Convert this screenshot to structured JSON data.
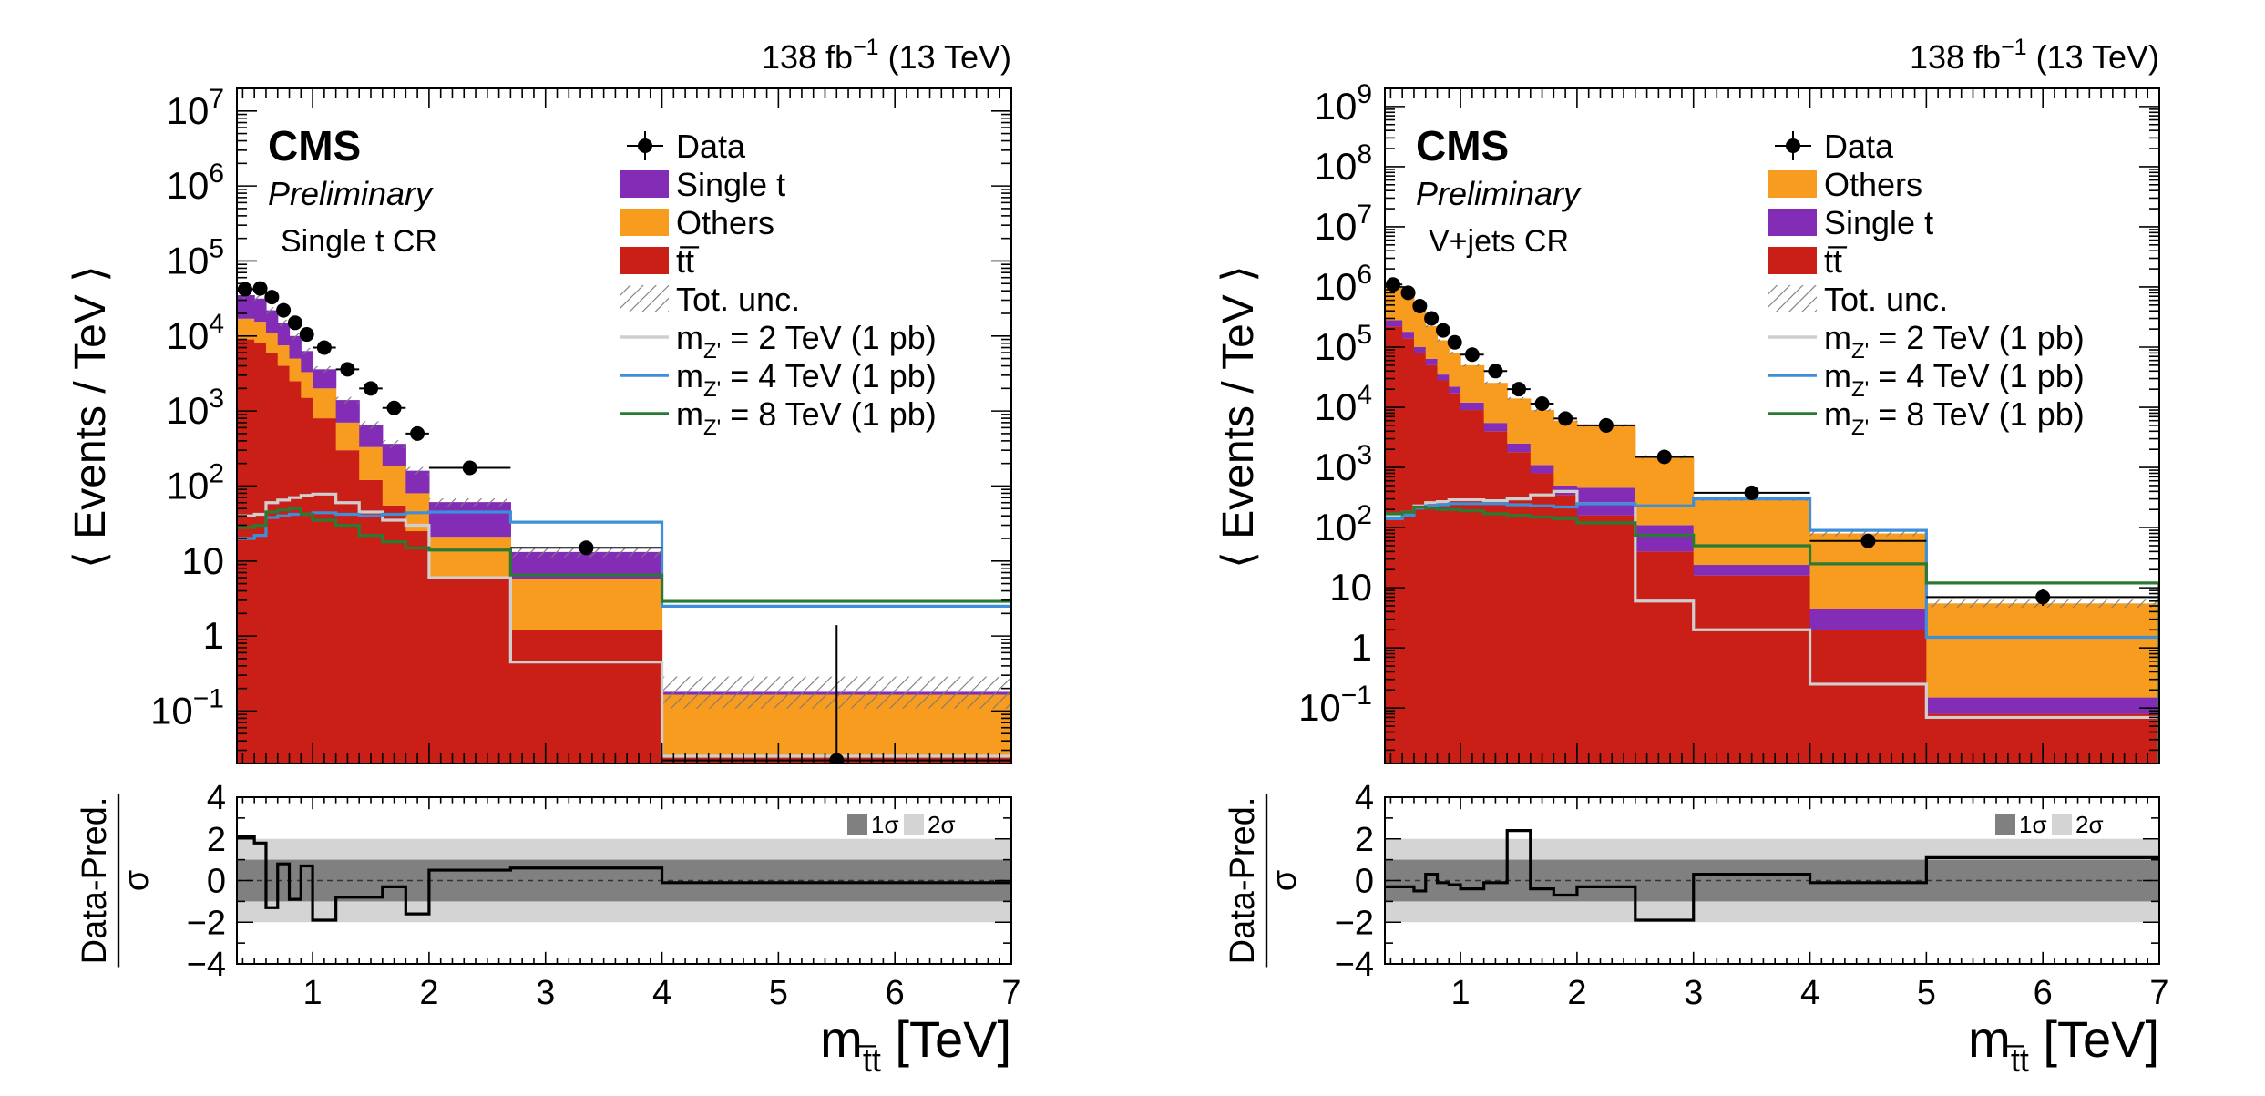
{
  "chart_data": [
    {
      "type": "stacked-step-histogram",
      "lumi_label": "138 fb",
      "lumi_exp": "−1",
      "energy_label": "(13 TeV)",
      "experiment": "CMS",
      "status": "Preliminary",
      "region": "Single t CR",
      "ylabel": "⟨ Events / TeV ⟩",
      "xlabel_main": "m",
      "xlabel_sub": "t̅t",
      "xlabel_unit": "[TeV]",
      "y_log": true,
      "ylim": [
        0.02,
        20000000
      ],
      "xlim": [
        0.35,
        7
      ],
      "xticks": [
        1,
        2,
        3,
        4,
        5,
        6,
        7
      ],
      "yticks": [
        {
          "v": 0.1,
          "t": "10",
          "e": "−1"
        },
        {
          "v": 1,
          "t": "1",
          "e": ""
        },
        {
          "v": 10,
          "t": "10",
          "e": ""
        },
        {
          "v": 100,
          "t": "10",
          "e": "2"
        },
        {
          "v": 1000,
          "t": "10",
          "e": "3"
        },
        {
          "v": 10000,
          "t": "10",
          "e": "4"
        },
        {
          "v": 100000,
          "t": "10",
          "e": "5"
        },
        {
          "v": 1000000,
          "t": "10",
          "e": "6"
        },
        {
          "v": 10000000,
          "t": "10",
          "e": "7"
        }
      ],
      "bin_edges": [
        0.35,
        0.5,
        0.6,
        0.7,
        0.8,
        0.9,
        1.0,
        1.2,
        1.4,
        1.6,
        1.8,
        2.0,
        2.7,
        4.0,
        7.0
      ],
      "stack": [
        {
          "name": "tt̅",
          "color": "#c91f16",
          "values": [
            9000,
            8000,
            6000,
            4000,
            2500,
            1500,
            800,
            300,
            120,
            55,
            25,
            6,
            1.2,
            0.025
          ]
        },
        {
          "name": "Others",
          "color": "#f89c20",
          "values": [
            8000,
            7500,
            5000,
            3500,
            2500,
            1800,
            1200,
            400,
            210,
            130,
            55,
            15,
            4.5,
            0.14
          ]
        },
        {
          "name": "Single t",
          "color": "#832db6",
          "values": [
            18000,
            16000,
            11000,
            7500,
            5000,
            3000,
            1600,
            700,
            320,
            180,
            80,
            40,
            7.5,
            0.015
          ]
        }
      ],
      "unc_bands": [
        {
          "lo": 0.9,
          "hi": 1.1
        },
        {
          "lo": 0.9,
          "hi": 1.1
        },
        {
          "lo": 0.9,
          "hi": 1.1
        },
        {
          "lo": 0.9,
          "hi": 1.1
        },
        {
          "lo": 0.9,
          "hi": 1.1
        },
        {
          "lo": 0.9,
          "hi": 1.1
        },
        {
          "lo": 0.9,
          "hi": 1.1
        },
        {
          "lo": 0.9,
          "hi": 1.1
        },
        {
          "lo": 0.88,
          "hi": 1.12
        },
        {
          "lo": 0.88,
          "hi": 1.12
        },
        {
          "lo": 0.88,
          "hi": 1.12
        },
        {
          "lo": 0.88,
          "hi": 1.12
        },
        {
          "lo": 0.85,
          "hi": 1.15
        },
        {
          "lo": 0.6,
          "hi": 1.6
        }
      ],
      "data": [
        {
          "x": 0.42,
          "y": 42000,
          "ylo": 40000,
          "yhi": 44000
        },
        {
          "x": 0.55,
          "y": 43000,
          "ylo": 41000,
          "yhi": 45000
        },
        {
          "x": 0.65,
          "y": 33000,
          "ylo": 31000,
          "yhi": 35000
        },
        {
          "x": 0.75,
          "y": 22000,
          "ylo": 21000,
          "yhi": 23000
        },
        {
          "x": 0.85,
          "y": 15000,
          "ylo": 14000,
          "yhi": 16000
        },
        {
          "x": 0.95,
          "y": 10500,
          "ylo": 10000,
          "yhi": 11000
        },
        {
          "x": 1.1,
          "y": 7000,
          "ylo": 6700,
          "yhi": 7300
        },
        {
          "x": 1.3,
          "y": 3600,
          "ylo": 3400,
          "yhi": 3800
        },
        {
          "x": 1.5,
          "y": 2000,
          "ylo": 1900,
          "yhi": 2100
        },
        {
          "x": 1.7,
          "y": 1100,
          "ylo": 1030,
          "yhi": 1170
        },
        {
          "x": 1.9,
          "y": 500,
          "ylo": 460,
          "yhi": 540
        },
        {
          "x": 2.35,
          "y": 175,
          "ylo": 165,
          "yhi": 185
        },
        {
          "x": 3.35,
          "y": 15,
          "ylo": 12,
          "yhi": 18
        },
        {
          "x": 5.5,
          "y": 0.022,
          "ylo": 0.015,
          "yhi": 1.4
        }
      ],
      "signals": [
        {
          "name": "2 TeV",
          "color": "#cfcfcf",
          "values": [
            40,
            42,
            60,
            65,
            70,
            75,
            78,
            60,
            45,
            35,
            30,
            6,
            0.45,
            0.025
          ]
        },
        {
          "name": "4 TeV",
          "color": "#3e8fd8",
          "values": [
            20,
            22,
            38,
            40,
            42,
            42,
            44,
            42,
            40,
            42,
            44,
            45,
            33,
            2.5
          ]
        },
        {
          "name": "8 TeV",
          "color": "#2a7a34",
          "values": [
            28,
            30,
            45,
            48,
            50,
            42,
            35,
            30,
            22,
            18,
            15,
            14,
            6.5,
            2.9
          ]
        }
      ],
      "legend": [
        {
          "kind": "data",
          "label": "Data"
        },
        {
          "kind": "fill",
          "color": "#832db6",
          "label": "Single t"
        },
        {
          "kind": "fill",
          "color": "#f89c20",
          "label": "Others"
        },
        {
          "kind": "fill",
          "color": "#c91f16",
          "label": "tt̅"
        },
        {
          "kind": "hatch",
          "label": "Tot. unc."
        },
        {
          "kind": "line",
          "color": "#cfcfcf",
          "label": "m",
          "sub": "Z'",
          "rest": " = 2 TeV (1 pb)"
        },
        {
          "kind": "line",
          "color": "#3e8fd8",
          "label": "m",
          "sub": "Z'",
          "rest": " = 4 TeV (1 pb)"
        },
        {
          "kind": "line",
          "color": "#2a7a34",
          "label": "m",
          "sub": "Z'",
          "rest": " = 8 TeV (1 pb)"
        }
      ],
      "pull": {
        "ylabel_num": "Data-Pred.",
        "ylabel_den": "σ",
        "ylim": [
          -4,
          4
        ],
        "yticks": [
          {
            "v": -4,
            "t": "−4"
          },
          {
            "v": -2,
            "t": "−2"
          },
          {
            "v": 0,
            "t": "0"
          },
          {
            "v": 2,
            "t": "2"
          },
          {
            "v": 4,
            "t": "4"
          }
        ],
        "band1_label": "1σ",
        "band2_label": "2σ",
        "values": [
          2.1,
          1.8,
          -1.3,
          0.8,
          -0.9,
          0.7,
          -1.9,
          -0.8,
          -0.8,
          -0.3,
          -1.6,
          0.5,
          0.6,
          -0.1
        ]
      }
    },
    {
      "type": "stacked-step-histogram",
      "lumi_label": "138 fb",
      "lumi_exp": "−1",
      "energy_label": "(13 TeV)",
      "experiment": "CMS",
      "status": "Preliminary",
      "region": "V+jets CR",
      "ylabel": "⟨ Events / TeV ⟩",
      "xlabel_main": "m",
      "xlabel_sub": "t̅t",
      "xlabel_unit": "[TeV]",
      "y_log": true,
      "ylim": [
        0.012,
        2000000000
      ],
      "xlim": [
        0.35,
        7
      ],
      "xticks": [
        1,
        2,
        3,
        4,
        5,
        6,
        7
      ],
      "yticks": [
        {
          "v": 0.1,
          "t": "10",
          "e": "−1"
        },
        {
          "v": 1,
          "t": "1",
          "e": ""
        },
        {
          "v": 10,
          "t": "10",
          "e": ""
        },
        {
          "v": 100,
          "t": "10",
          "e": "2"
        },
        {
          "v": 1000,
          "t": "10",
          "e": "3"
        },
        {
          "v": 10000,
          "t": "10",
          "e": "4"
        },
        {
          "v": 100000,
          "t": "10",
          "e": "5"
        },
        {
          "v": 1000000,
          "t": "10",
          "e": "6"
        },
        {
          "v": 10000000,
          "t": "10",
          "e": "7"
        },
        {
          "v": 100000000,
          "t": "10",
          "e": "8"
        },
        {
          "v": 1000000000,
          "t": "10",
          "e": "9"
        }
      ],
      "bin_edges": [
        0.35,
        0.5,
        0.6,
        0.7,
        0.8,
        0.9,
        1.0,
        1.2,
        1.4,
        1.6,
        1.8,
        2.0,
        2.5,
        3.0,
        4.0,
        5.0,
        7.0
      ],
      "stack": [
        {
          "name": "tt̅",
          "color": "#c91f16",
          "values": [
            220000,
            140000,
            80000,
            50000,
            28000,
            17000,
            9000,
            4000,
            1800,
            800,
            350,
            160,
            40,
            16,
            2,
            0.08
          ]
        },
        {
          "name": "Single t",
          "color": "#832db6",
          "values": [
            60000,
            40000,
            20000,
            14000,
            7000,
            5000,
            3000,
            1500,
            700,
            300,
            150,
            300,
            70,
            8,
            2.5,
            0.07
          ]
        },
        {
          "name": "Others",
          "color": "#f89c20",
          "values": [
            720000,
            520000,
            300000,
            160000,
            95000,
            58000,
            38000,
            20000,
            11500,
            7900,
            5500,
            4500,
            1390,
            276,
            75.5,
            5.35
          ]
        }
      ],
      "unc_bands": [
        {
          "lo": 0.95,
          "hi": 1.05
        },
        {
          "lo": 0.95,
          "hi": 1.05
        },
        {
          "lo": 0.95,
          "hi": 1.05
        },
        {
          "lo": 0.95,
          "hi": 1.05
        },
        {
          "lo": 0.95,
          "hi": 1.05
        },
        {
          "lo": 0.95,
          "hi": 1.05
        },
        {
          "lo": 0.95,
          "hi": 1.05
        },
        {
          "lo": 0.95,
          "hi": 1.05
        },
        {
          "lo": 0.95,
          "hi": 1.05
        },
        {
          "lo": 0.95,
          "hi": 1.05
        },
        {
          "lo": 0.95,
          "hi": 1.05
        },
        {
          "lo": 0.95,
          "hi": 1.05
        },
        {
          "lo": 0.93,
          "hi": 1.07
        },
        {
          "lo": 0.92,
          "hi": 1.08
        },
        {
          "lo": 0.9,
          "hi": 1.1
        },
        {
          "lo": 0.85,
          "hi": 1.15
        }
      ],
      "data": [
        {
          "x": 0.42,
          "y": 1100000,
          "ylo": 1080000,
          "yhi": 1120000
        },
        {
          "x": 0.55,
          "y": 800000,
          "ylo": 785000,
          "yhi": 815000
        },
        {
          "x": 0.65,
          "y": 480000,
          "ylo": 470000,
          "yhi": 490000
        },
        {
          "x": 0.75,
          "y": 300000,
          "ylo": 293000,
          "yhi": 307000
        },
        {
          "x": 0.85,
          "y": 190000,
          "ylo": 185000,
          "yhi": 195000
        },
        {
          "x": 0.95,
          "y": 120000,
          "ylo": 117000,
          "yhi": 123000
        },
        {
          "x": 1.1,
          "y": 75000,
          "ylo": 73000,
          "yhi": 77000
        },
        {
          "x": 1.3,
          "y": 40000,
          "ylo": 39000,
          "yhi": 41000
        },
        {
          "x": 1.5,
          "y": 20000,
          "ylo": 19500,
          "yhi": 20500
        },
        {
          "x": 1.7,
          "y": 11500,
          "ylo": 11200,
          "yhi": 11800
        },
        {
          "x": 1.9,
          "y": 6500,
          "ylo": 6300,
          "yhi": 6700
        },
        {
          "x": 2.25,
          "y": 5000,
          "ylo": 4850,
          "yhi": 5150
        },
        {
          "x": 2.75,
          "y": 1500,
          "ylo": 1440,
          "yhi": 1560
        },
        {
          "x": 3.5,
          "y": 380,
          "ylo": 360,
          "yhi": 400
        },
        {
          "x": 4.5,
          "y": 60,
          "ylo": 54,
          "yhi": 66
        },
        {
          "x": 6.0,
          "y": 7,
          "ylo": 5,
          "yhi": 9.5
        }
      ],
      "signals": [
        {
          "name": "2 TeV",
          "color": "#cfcfcf",
          "values": [
            160,
            180,
            230,
            260,
            270,
            290,
            290,
            280,
            300,
            350,
            400,
            250,
            6,
            2,
            0.25,
            0.07
          ]
        },
        {
          "name": "4 TeV",
          "color": "#3e8fd8",
          "values": [
            140,
            160,
            210,
            230,
            240,
            250,
            250,
            250,
            240,
            230,
            220,
            250,
            230,
            300,
            90,
            1.5
          ]
        },
        {
          "name": "8 TeV",
          "color": "#2a7a34",
          "values": [
            170,
            180,
            220,
            210,
            200,
            200,
            190,
            170,
            160,
            150,
            140,
            120,
            75,
            50,
            25,
            12
          ]
        }
      ],
      "legend": [
        {
          "kind": "data",
          "label": "Data"
        },
        {
          "kind": "fill",
          "color": "#f89c20",
          "label": "Others"
        },
        {
          "kind": "fill",
          "color": "#832db6",
          "label": "Single t"
        },
        {
          "kind": "fill",
          "color": "#c91f16",
          "label": "tt̅"
        },
        {
          "kind": "hatch",
          "label": "Tot. unc."
        },
        {
          "kind": "line",
          "color": "#cfcfcf",
          "label": "m",
          "sub": "Z'",
          "rest": " = 2 TeV (1 pb)"
        },
        {
          "kind": "line",
          "color": "#3e8fd8",
          "label": "m",
          "sub": "Z'",
          "rest": " = 4 TeV (1 pb)"
        },
        {
          "kind": "line",
          "color": "#2a7a34",
          "label": "m",
          "sub": "Z'",
          "rest": " = 8 TeV (1 pb)"
        }
      ],
      "pull": {
        "ylabel_num": "Data-Pred.",
        "ylabel_den": "σ",
        "ylim": [
          -4,
          4
        ],
        "yticks": [
          {
            "v": -4,
            "t": "−4"
          },
          {
            "v": -2,
            "t": "−2"
          },
          {
            "v": 0,
            "t": "0"
          },
          {
            "v": 2,
            "t": "2"
          },
          {
            "v": 4,
            "t": "4"
          }
        ],
        "band1_label": "1σ",
        "band2_label": "2σ",
        "values": [
          -0.3,
          -0.3,
          -0.5,
          0.3,
          -0.1,
          -0.2,
          -0.4,
          -0.1,
          2.4,
          -0.4,
          -0.7,
          -0.3,
          -1.9,
          0.3,
          -0.1,
          1.1
        ]
      }
    }
  ]
}
